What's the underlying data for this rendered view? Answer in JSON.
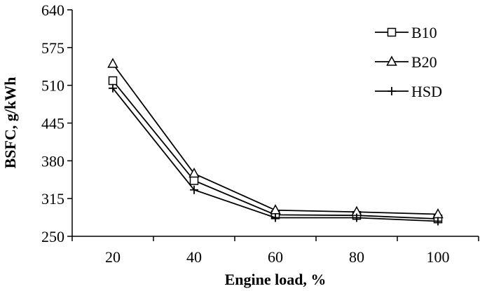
{
  "chart_data": {
    "type": "line",
    "title": "",
    "xlabel": "Engine load, %",
    "ylabel": "BSFC, g/kWh",
    "x": [
      20,
      40,
      60,
      80,
      100
    ],
    "x_ticks": [
      "20",
      "40",
      "60",
      "80",
      "100"
    ],
    "ylim": [
      250,
      640
    ],
    "y_ticks": [
      250,
      315,
      380,
      445,
      510,
      575,
      640
    ],
    "grid": false,
    "legend_position": "top-right",
    "series": [
      {
        "name": "B10",
        "marker": "square",
        "values": [
          518,
          346,
          287,
          286,
          280
        ]
      },
      {
        "name": "B20",
        "marker": "triangle",
        "values": [
          547,
          358,
          295,
          292,
          288
        ]
      },
      {
        "name": "HSD",
        "marker": "plus",
        "values": [
          505,
          330,
          282,
          282,
          276
        ]
      }
    ],
    "colors": {
      "line": "#000000",
      "background": "#ffffff"
    }
  }
}
